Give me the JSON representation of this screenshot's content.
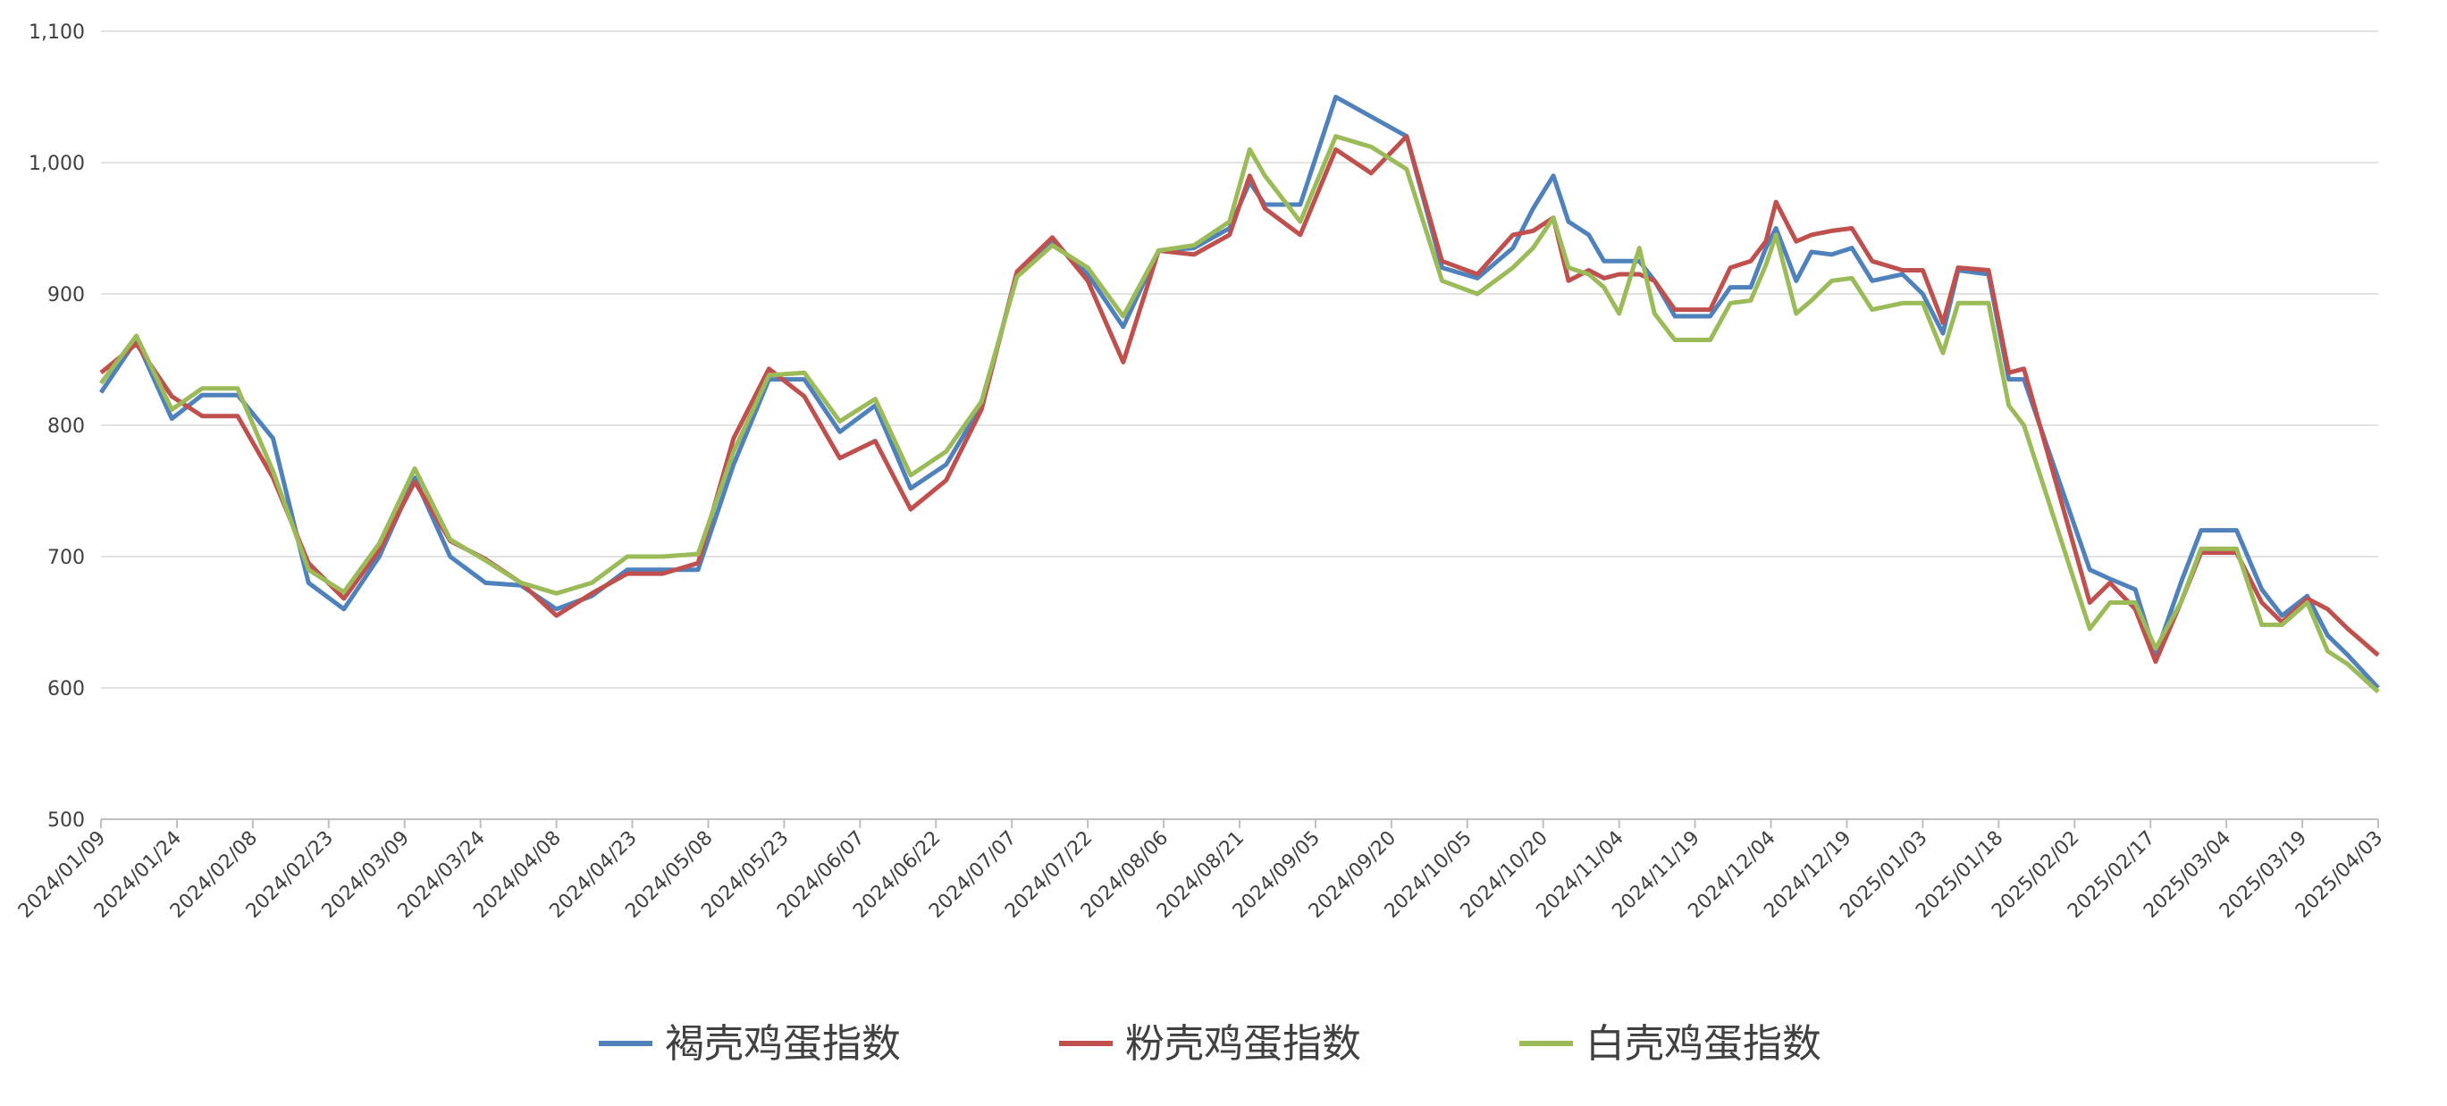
{
  "chart_data": {
    "type": "line",
    "x": [
      "2024/01/09",
      "2024/01/16",
      "2024/01/23",
      "2024/01/29",
      "2024/02/05",
      "2024/02/12",
      "2024/02/19",
      "2024/02/26",
      "2024/03/04",
      "2024/03/11",
      "2024/03/18",
      "2024/03/25",
      "2024/04/01",
      "2024/04/08",
      "2024/04/15",
      "2024/04/22",
      "2024/04/29",
      "2024/05/06",
      "2024/05/13",
      "2024/05/20",
      "2024/05/27",
      "2024/06/03",
      "2024/06/10",
      "2024/06/17",
      "2024/06/24",
      "2024/07/01",
      "2024/07/08",
      "2024/07/15",
      "2024/07/22",
      "2024/07/29",
      "2024/08/05",
      "2024/08/12",
      "2024/08/19",
      "2024/08/23",
      "2024/08/26",
      "2024/09/02",
      "2024/09/09",
      "2024/09/16",
      "2024/09/23",
      "2024/09/30",
      "2024/10/07",
      "2024/10/14",
      "2024/10/18",
      "2024/10/22",
      "2024/10/25",
      "2024/10/29",
      "2024/11/01",
      "2024/11/04",
      "2024/11/08",
      "2024/11/11",
      "2024/11/15",
      "2024/11/22",
      "2024/11/26",
      "2024/11/30",
      "2024/12/03",
      "2024/12/05",
      "2024/12/09",
      "2024/12/12",
      "2024/12/16",
      "2024/12/20",
      "2024/12/24",
      "2024/12/30",
      "2025/01/03",
      "2025/01/07",
      "2025/01/10",
      "2025/01/16",
      "2025/01/20",
      "2025/01/23",
      "2025/02/05",
      "2025/02/09",
      "2025/02/14",
      "2025/02/18",
      "2025/02/23",
      "2025/02/27",
      "2025/03/06",
      "2025/03/11",
      "2025/03/15",
      "2025/03/20",
      "2025/03/24",
      "2025/03/28",
      "2025/04/03"
    ],
    "series": [
      {
        "name": "褐壳鸡蛋指数",
        "color": "#4f81bd",
        "values": [
          825,
          865,
          805,
          823,
          823,
          790,
          680,
          660,
          700,
          760,
          700,
          680,
          678,
          660,
          670,
          690,
          690,
          690,
          770,
          835,
          835,
          795,
          815,
          752,
          770,
          815,
          915,
          940,
          915,
          875,
          933,
          935,
          950,
          985,
          968,
          968,
          1050,
          1035,
          1020,
          920,
          912,
          935,
          965,
          990,
          955,
          945,
          925,
          925,
          925,
          910,
          883,
          883,
          905,
          905,
          935,
          950,
          910,
          932,
          930,
          935,
          910,
          915,
          900,
          870,
          918,
          915,
          835,
          835,
          690,
          683,
          675,
          625,
          680,
          720,
          720,
          675,
          655,
          670,
          640,
          625,
          600
        ]
      },
      {
        "name": "粉壳鸡蛋指数",
        "color": "#c0504d",
        "values": [
          840,
          862,
          822,
          807,
          807,
          760,
          695,
          668,
          705,
          757,
          712,
          698,
          680,
          655,
          672,
          687,
          687,
          695,
          790,
          843,
          822,
          775,
          788,
          736,
          758,
          812,
          917,
          943,
          910,
          848,
          933,
          930,
          945,
          990,
          965,
          945,
          1010,
          992,
          1020,
          925,
          915,
          945,
          948,
          958,
          910,
          918,
          912,
          915,
          915,
          910,
          888,
          888,
          920,
          925,
          940,
          970,
          940,
          945,
          948,
          950,
          925,
          918,
          918,
          878,
          920,
          918,
          840,
          843,
          665,
          680,
          660,
          620,
          665,
          703,
          703,
          665,
          650,
          668,
          660,
          645,
          625
        ]
      },
      {
        "name": "白壳鸡蛋指数",
        "color": "#9bbb59",
        "values": [
          832,
          868,
          812,
          828,
          828,
          765,
          690,
          673,
          710,
          767,
          713,
          697,
          680,
          672,
          680,
          700,
          700,
          702,
          780,
          838,
          840,
          803,
          820,
          762,
          780,
          818,
          913,
          937,
          920,
          883,
          933,
          937,
          955,
          1010,
          990,
          955,
          1020,
          1012,
          995,
          910,
          900,
          920,
          935,
          958,
          920,
          915,
          905,
          885,
          935,
          885,
          865,
          865,
          893,
          895,
          922,
          945,
          885,
          895,
          910,
          912,
          888,
          893,
          893,
          855,
          893,
          893,
          815,
          800,
          645,
          665,
          665,
          630,
          665,
          706,
          706,
          648,
          648,
          665,
          628,
          618,
          597
        ]
      }
    ],
    "xlim": [
      "2024/01/09",
      "2025/04/03"
    ],
    "xticks": [
      "2024/01/09",
      "2024/01/24",
      "2024/02/08",
      "2024/02/23",
      "2024/03/09",
      "2024/03/24",
      "2024/04/08",
      "2024/04/23",
      "2024/05/08",
      "2024/05/23",
      "2024/06/07",
      "2024/06/22",
      "2024/07/07",
      "2024/07/22",
      "2024/08/06",
      "2024/08/21",
      "2024/09/05",
      "2024/09/20",
      "2024/10/05",
      "2024/10/20",
      "2024/11/04",
      "2024/11/19",
      "2024/12/04",
      "2024/12/19",
      "2025/01/03",
      "2025/01/18",
      "2025/02/02",
      "2025/02/17",
      "2025/03/04",
      "2025/03/19",
      "2025/04/03"
    ],
    "ylim": [
      500,
      1100
    ],
    "yticks": [
      500,
      600,
      700,
      800,
      900,
      {
        "value": 1000,
        "label": "1,000"
      },
      {
        "value": 1100,
        "label": "1,100"
      }
    ],
    "grid": true,
    "legend": "bottom"
  }
}
